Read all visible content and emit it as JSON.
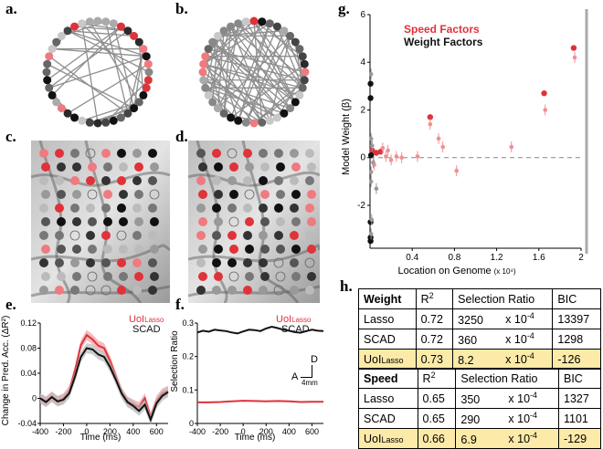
{
  "panel_labels": [
    "a.",
    "b.",
    "c.",
    "d.",
    "e.",
    "f.",
    "g.",
    "h."
  ],
  "scalebar": {
    "dir_d": "D",
    "dir_a": "A",
    "length": "4mm"
  },
  "panel_e": {
    "ylabel": "Change in Pred. Acc. (ΔR²)",
    "xlabel": "Time (ms)",
    "legend_uoi": "UoI",
    "legend_uoi_sub": "Lasso",
    "legend_scad": "SCAD"
  },
  "panel_f": {
    "ylabel": "Selection Ratio",
    "xlabel": "Time (ms)",
    "legend_uoi": "UoI",
    "legend_uoi_sub": "Lasso",
    "legend_scad": "SCAD"
  },
  "panel_g": {
    "legend_speed": "Speed Factors",
    "legend_weight": "Weight Factors",
    "ylabel": "Model Weight (β)",
    "xlabel": "Location on Genome",
    "xlabel_unit": "(x 10⁴)"
  },
  "colors": {
    "red": "#e0323a",
    "black": "#111111",
    "shade_red": "#f0a0a4",
    "shade_gray": "#b8b8b8"
  },
  "chart_data": [
    {
      "type": "line",
      "panel": "e",
      "xlabel": "Time (ms)",
      "ylabel": "Change in Pred. Acc. (ΔR²)",
      "xlim": [
        -400,
        700
      ],
      "ylim": [
        -0.04,
        0.12
      ],
      "xticks": [
        -400,
        -200,
        0,
        200,
        400,
        600
      ],
      "yticks": [
        -0.04,
        0,
        0.04,
        0.08,
        0.12
      ],
      "series": [
        {
          "name": "UoILasso",
          "color": "#e0323a",
          "x": [
            -400,
            -350,
            -300,
            -250,
            -200,
            -150,
            -100,
            -50,
            0,
            50,
            100,
            150,
            200,
            250,
            300,
            350,
            400,
            450,
            500,
            550,
            600,
            650,
            700
          ],
          "y": [
            0.0,
            -0.005,
            0.003,
            -0.004,
            0.0,
            0.012,
            0.045,
            0.085,
            0.101,
            0.094,
            0.084,
            0.08,
            0.06,
            0.035,
            0.01,
            -0.005,
            -0.01,
            -0.014,
            0.0,
            -0.03,
            -0.004,
            0.008,
            0.012
          ]
        },
        {
          "name": "SCAD",
          "color": "#111111",
          "x": [
            -400,
            -350,
            -300,
            -250,
            -200,
            -150,
            -100,
            -50,
            0,
            50,
            100,
            150,
            200,
            250,
            300,
            350,
            400,
            450,
            500,
            550,
            600,
            650,
            700
          ],
          "y": [
            0.0,
            -0.006,
            0.002,
            -0.005,
            -0.002,
            0.008,
            0.035,
            0.066,
            0.08,
            0.078,
            0.07,
            0.066,
            0.05,
            0.03,
            0.008,
            -0.006,
            -0.012,
            -0.02,
            -0.01,
            -0.034,
            -0.008,
            0.004,
            0.01
          ]
        }
      ]
    },
    {
      "type": "line",
      "panel": "f",
      "xlabel": "Time (ms)",
      "ylabel": "Selection Ratio",
      "xlim": [
        -400,
        700
      ],
      "ylim": [
        0,
        0.3
      ],
      "xticks": [
        -400,
        -200,
        0,
        200,
        400,
        600
      ],
      "yticks": [
        0,
        0.1,
        0.2,
        0.3
      ],
      "series": [
        {
          "name": "SCAD",
          "color": "#111111",
          "x": [
            -400,
            -350,
            -300,
            -250,
            -200,
            -150,
            -100,
            -50,
            0,
            50,
            100,
            150,
            200,
            250,
            300,
            350,
            400,
            450,
            500,
            550,
            600,
            650,
            700
          ],
          "y": [
            0.272,
            0.277,
            0.274,
            0.28,
            0.278,
            0.276,
            0.272,
            0.269,
            0.275,
            0.28,
            0.279,
            0.276,
            0.284,
            0.289,
            0.285,
            0.28,
            0.277,
            0.273,
            0.271,
            0.276,
            0.28,
            0.277,
            0.276
          ]
        },
        {
          "name": "UoILasso",
          "color": "#e0323a",
          "x": [
            -400,
            -300,
            -200,
            -100,
            0,
            100,
            200,
            300,
            400,
            500,
            600,
            700
          ],
          "y": [
            0.063,
            0.063,
            0.064,
            0.066,
            0.068,
            0.067,
            0.066,
            0.067,
            0.066,
            0.064,
            0.065,
            0.065
          ]
        }
      ]
    },
    {
      "type": "scatter",
      "panel": "g",
      "xlabel": "Location on Genome",
      "ylabel": "Model Weight (β)",
      "xlim": [
        0,
        2.0
      ],
      "ylim": [
        -3.8,
        6
      ],
      "xticks": [
        0.4,
        0.8,
        1.2,
        1.6,
        2
      ],
      "xtick_labels": [
        "0.4",
        "0.8",
        "1.2",
        "1.6",
        "2"
      ],
      "yticks": [
        -2,
        0,
        2,
        4,
        6
      ],
      "series": [
        {
          "name": "Speed Factors",
          "color": "#e0323a",
          "points": [
            [
              0.57,
              1.7
            ],
            [
              1.65,
              2.7
            ],
            [
              1.93,
              4.6
            ],
            [
              0.02,
              0.3
            ],
            [
              0.06,
              0.2
            ],
            [
              0.1,
              0.25
            ]
          ]
        },
        {
          "name": "Weight Factors",
          "color": "#111111",
          "points": [
            [
              0.005,
              3.1
            ],
            [
              0.005,
              2.5
            ],
            [
              0.005,
              -2.7
            ],
            [
              0.005,
              -3.35
            ],
            [
              0.005,
              -3.5
            ],
            [
              0.01,
              0.1
            ]
          ]
        },
        {
          "name": "speed-light",
          "color": "#ef9095",
          "points": [
            [
              0.57,
              1.4
            ],
            [
              0.65,
              0.8
            ],
            [
              0.69,
              0.45
            ],
            [
              0.82,
              -0.55
            ],
            [
              1.34,
              0.45
            ],
            [
              1.66,
              2.0
            ],
            [
              1.94,
              4.2
            ],
            [
              0.15,
              0.05
            ],
            [
              0.2,
              -0.1
            ],
            [
              0.25,
              0.05
            ],
            [
              0.3,
              0.0
            ],
            [
              0.45,
              0.05
            ],
            [
              0.12,
              0.4
            ],
            [
              0.04,
              -0.3
            ],
            [
              0.17,
              0.3
            ]
          ]
        },
        {
          "name": "weight-light",
          "color": "#9a9a9a",
          "points": [
            [
              0.01,
              3.5
            ],
            [
              0.01,
              -1.0
            ],
            [
              0.01,
              0.8
            ],
            [
              0.01,
              -0.6
            ],
            [
              0.06,
              -1.3
            ],
            [
              0.02,
              0.5
            ],
            [
              0.03,
              -0.2
            ],
            [
              0.015,
              -2.6
            ],
            [
              0.01,
              -3.2
            ]
          ]
        }
      ]
    },
    {
      "type": "table",
      "panel": "h",
      "tables": [
        {
          "header": [
            "Weight",
            "R",
            "Selection Ratio",
            "BIC"
          ],
          "rows": [
            {
              "model": "Lasso",
              "r2": "0.72",
              "sel": "3250",
              "exp": "x 10",
              "exp_pow": "-4",
              "bic": "13397",
              "highlight": false
            },
            {
              "model": "SCAD",
              "r2": "0.72",
              "sel": "360",
              "exp": "x 10",
              "exp_pow": "-4",
              "bic": "1298",
              "highlight": false
            },
            {
              "model": "UoI",
              "model_sub": "Lasso",
              "r2": "0.73",
              "sel": "8.2",
              "exp": "x 10",
              "exp_pow": "-4",
              "bic": "-126",
              "highlight": true
            }
          ]
        },
        {
          "header": [
            "Speed",
            "R",
            "Selection Ratio",
            "BIC"
          ],
          "rows": [
            {
              "model": "Lasso",
              "r2": "0.65",
              "sel": "350",
              "exp": "x 10",
              "exp_pow": "-4",
              "bic": "1327",
              "highlight": false
            },
            {
              "model": "SCAD",
              "r2": "0.65",
              "sel": "290",
              "exp": "x 10",
              "exp_pow": "-4",
              "bic": "1101",
              "highlight": false
            },
            {
              "model": "UoI",
              "model_sub": "Lasso",
              "r2": "0.66",
              "sel": "6.9",
              "exp": "x 10",
              "exp_pow": "-4",
              "bic": "-129",
              "highlight": true
            }
          ]
        }
      ],
      "r2_sup": "2"
    }
  ]
}
